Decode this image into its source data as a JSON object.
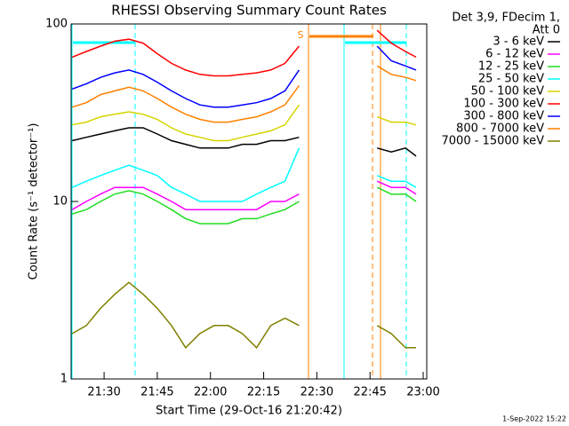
{
  "chart_data": {
    "type": "line",
    "title": "RHESSI Observing Summary Count Rates",
    "xlabel": "Start Time (29-Oct-16 21:20:42)",
    "ylabel": "Count Rate (s⁻¹ detector⁻¹)",
    "legend_header": [
      "Det 3,9, FDecim 1,",
      "Att 0"
    ],
    "flag_label": "S",
    "timestamp": "1-Sep-2022 15:22",
    "log_y": true,
    "x": [
      "21:21",
      "21:25",
      "21:29",
      "21:33",
      "21:37",
      "21:41",
      "21:45",
      "21:49",
      "21:53",
      "21:57",
      "22:01",
      "22:05",
      "22:09",
      "22:13",
      "22:17",
      "22:21",
      "22:25",
      "22:37",
      "22:47",
      "22:51",
      "22:55",
      "22:58"
    ],
    "xlim": [
      "21:20:42",
      "23:01"
    ],
    "xticks": [
      "21:30",
      "21:45",
      "22:00",
      "22:15",
      "22:30",
      "22:45",
      "23:00"
    ],
    "ylim": [
      1,
      100
    ],
    "yticks": [
      1,
      10,
      100
    ],
    "series": [
      {
        "name": "3 - 6 keV",
        "color": "#000000",
        "values": [
          22,
          23,
          24,
          25,
          26,
          26,
          24,
          22,
          21,
          20,
          20,
          20,
          21,
          21,
          22,
          22,
          23,
          null,
          20,
          19,
          20,
          18
        ]
      },
      {
        "name": "6 - 12 keV",
        "color": "#ff00ff",
        "values": [
          9,
          10,
          11,
          12,
          12,
          12,
          11,
          10,
          9,
          9,
          9,
          9,
          9,
          9,
          10,
          10,
          11,
          null,
          13,
          12,
          12,
          11
        ]
      },
      {
        "name": "12 - 25 keV",
        "color": "#22dd22",
        "values": [
          8.5,
          9,
          10,
          11,
          11.5,
          11,
          10,
          9,
          8,
          7.5,
          7.5,
          7.5,
          8,
          8,
          8.5,
          9,
          10,
          null,
          12,
          11,
          11,
          10
        ]
      },
      {
        "name": "25 - 50 keV",
        "color": "#00ffff",
        "values": [
          12,
          13,
          14,
          15,
          16,
          15,
          14,
          12,
          11,
          10,
          10,
          10,
          10,
          11,
          12,
          13,
          20,
          null,
          14,
          13,
          13,
          12
        ]
      },
      {
        "name": "50 - 100 keV",
        "color": "#d4d400",
        "values": [
          27,
          28,
          30,
          31,
          32,
          31,
          29,
          26,
          24,
          23,
          22,
          22,
          23,
          24,
          25,
          27,
          35,
          null,
          30,
          28,
          28,
          27
        ]
      },
      {
        "name": "100 - 300 keV",
        "color": "#ff0000",
        "values": [
          65,
          70,
          75,
          80,
          82,
          78,
          68,
          60,
          55,
          52,
          51,
          51,
          52,
          53,
          55,
          60,
          75,
          null,
          92,
          78,
          70,
          65
        ]
      },
      {
        "name": "300 - 800 keV",
        "color": "#0000ff",
        "values": [
          43,
          46,
          50,
          53,
          55,
          52,
          47,
          42,
          38,
          35,
          34,
          34,
          35,
          36,
          38,
          42,
          55,
          null,
          75,
          62,
          58,
          55
        ]
      },
      {
        "name": "800 - 7000 keV",
        "color": "#ff8000",
        "values": [
          34,
          36,
          40,
          42,
          44,
          42,
          38,
          34,
          31,
          29,
          28,
          28,
          29,
          30,
          32,
          35,
          45,
          null,
          58,
          52,
          50,
          48
        ]
      },
      {
        "name": "7000 - 15000 keV",
        "color": "#808000",
        "values": [
          1.8,
          2,
          2.5,
          3,
          3.5,
          3,
          2.5,
          2,
          1.5,
          1.8,
          2,
          2,
          1.8,
          1.5,
          2,
          2.2,
          2,
          null,
          2,
          1.8,
          1.5,
          1.5
        ]
      }
    ]
  }
}
